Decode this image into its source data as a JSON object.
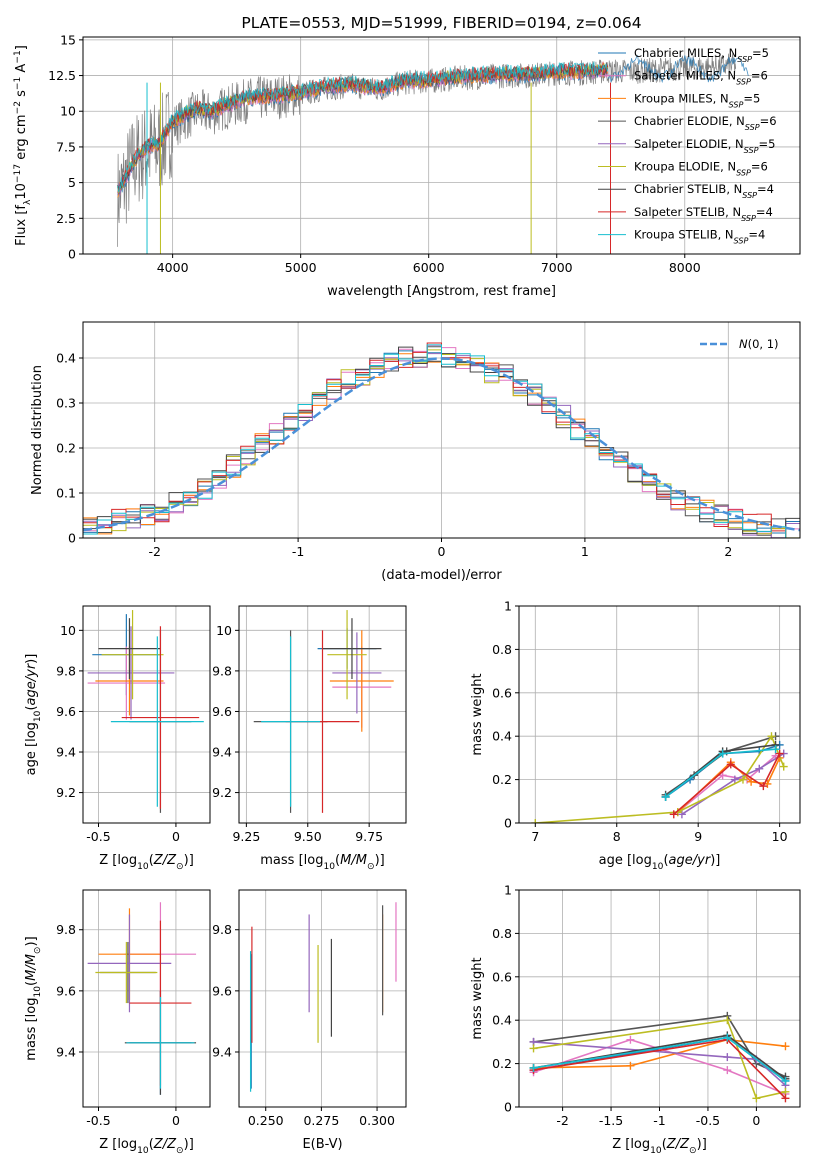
{
  "chart_data": [
    {
      "id": "spectrum",
      "type": "line",
      "title": "PLATE=0553, MJD=51999, FIBERID=0194, z=0.064",
      "xlabel": "wavelength [Angstrom, rest frame]",
      "ylabel": "Flux [f_λ10^-17 erg cm^-2 s^-1 A^-1]",
      "xlim": [
        3300,
        8900
      ],
      "ylim": [
        0,
        15.2
      ],
      "xticks": [
        4000,
        5000,
        6000,
        7000,
        8000
      ],
      "yticks": [
        0.0,
        2.5,
        5.0,
        7.5,
        10.0,
        12.5,
        15.0
      ],
      "data_color": "#808080",
      "data_x": [
        3570,
        3600,
        3700,
        3800,
        3900,
        4000,
        4100,
        4200,
        4300,
        4400,
        4600,
        4800,
        5000,
        5200,
        5400,
        5600,
        5800,
        6000,
        6200,
        6400,
        6600,
        6800,
        7000,
        7200,
        7400,
        7600,
        7800,
        8000,
        8200,
        8400
      ],
      "data_y": [
        4.0,
        4.5,
        6.5,
        7.2,
        7.5,
        9.0,
        9.5,
        10.0,
        9.8,
        10.2,
        10.8,
        11.0,
        11.2,
        11.6,
        11.8,
        11.5,
        12.0,
        12.1,
        12.3,
        12.4,
        12.5,
        12.5,
        12.7,
        12.7,
        12.8,
        12.8,
        12.9,
        13.0,
        13.1,
        13.2
      ],
      "model_x": [
        3570,
        3600,
        3700,
        3800,
        3900,
        4000,
        4100,
        4200,
        4300,
        4400,
        4600,
        4800,
        5000,
        5200,
        5400,
        5600,
        5800,
        6000,
        6200,
        6400,
        6600,
        6800,
        7000,
        7200,
        7400
      ],
      "model_y": [
        4.5,
        4.8,
        6.6,
        7.5,
        7.8,
        9.3,
        9.8,
        10.2,
        10.0,
        10.4,
        11.0,
        11.1,
        11.3,
        11.7,
        11.9,
        11.6,
        12.1,
        12.2,
        12.4,
        12.5,
        12.6,
        12.6,
        12.8,
        12.8,
        12.9
      ],
      "series": [
        {
          "name": "Chabrier MILES, N_SSP=5",
          "color": "#1f77b4"
        },
        {
          "name": "Salpeter MILES, N_SSP=6",
          "color": "#e377c2"
        },
        {
          "name": "Kroupa MILES, N_SSP=5",
          "color": "#ff7f0e"
        },
        {
          "name": "Chabrier ELODIE, N_SSP=6",
          "color": "#555555"
        },
        {
          "name": "Salpeter ELODIE, N_SSP=5",
          "color": "#9467bd"
        },
        {
          "name": "Kroupa ELODIE, N_SSP=6",
          "color": "#bcbd22"
        },
        {
          "name": "Chabrier STELIB, N_SSP=4",
          "color": "#444444"
        },
        {
          "name": "Salpeter STELIB, N_SSP=4",
          "color": "#d62728"
        },
        {
          "name": "Kroupa STELIB, N_SSP=4",
          "color": "#17becf"
        }
      ]
    },
    {
      "id": "residuals",
      "type": "line",
      "xlabel": "(data-model)/error",
      "ylabel": "Normed distribution",
      "xlim": [
        -2.5,
        2.5
      ],
      "ylim": [
        0,
        0.48
      ],
      "xticks": [
        -2,
        -1,
        0,
        1,
        2
      ],
      "yticks": [
        0.0,
        0.1,
        0.2,
        0.3,
        0.4
      ],
      "legend": "N(0,1)",
      "legend_position": "top-right",
      "histogram_bins": [
        -2.5,
        -2.4,
        -2.3,
        -2.2,
        -2.1,
        -2.0,
        -1.9,
        -1.8,
        -1.7,
        -1.6,
        -1.5,
        -1.4,
        -1.3,
        -1.2,
        -1.1,
        -1.0,
        -0.9,
        -0.8,
        -0.7,
        -0.6,
        -0.5,
        -0.4,
        -0.3,
        -0.2,
        -0.1,
        0.0,
        0.1,
        0.2,
        0.3,
        0.4,
        0.5,
        0.6,
        0.7,
        0.8,
        0.9,
        1.0,
        1.1,
        1.2,
        1.3,
        1.4,
        1.5,
        1.6,
        1.7,
        1.8,
        1.9,
        2.0,
        2.1,
        2.2,
        2.3,
        2.4
      ],
      "histogram_values": [
        0.02,
        0.03,
        0.04,
        0.04,
        0.05,
        0.06,
        0.08,
        0.09,
        0.11,
        0.13,
        0.16,
        0.18,
        0.21,
        0.23,
        0.26,
        0.28,
        0.31,
        0.33,
        0.35,
        0.36,
        0.38,
        0.39,
        0.4,
        0.4,
        0.41,
        0.4,
        0.39,
        0.38,
        0.37,
        0.36,
        0.34,
        0.32,
        0.29,
        0.27,
        0.24,
        0.22,
        0.19,
        0.17,
        0.14,
        0.12,
        0.1,
        0.08,
        0.07,
        0.06,
        0.05,
        0.04,
        0.03,
        0.03,
        0.02,
        0.02
      ]
    },
    {
      "id": "age_vs_Z",
      "type": "scatter",
      "xlabel": "Z [log10(Z/Z⊙)]",
      "ylabel": "age [log10(age/yr)]",
      "xlim": [
        -0.6,
        0.22
      ],
      "ylim": [
        9.05,
        10.12
      ],
      "xticks": [
        -0.5,
        0.0
      ],
      "yticks": [
        9.2,
        9.4,
        9.6,
        9.8,
        10.0
      ],
      "points": [
        {
          "x": -0.32,
          "y": 9.88,
          "xerr": 0.22,
          "yerr": 0.2,
          "color": "#1f77b4"
        },
        {
          "x": -0.32,
          "y": 9.74,
          "xerr": 0.25,
          "yerr": 0.18,
          "color": "#e377c2"
        },
        {
          "x": -0.3,
          "y": 9.75,
          "xerr": 0.22,
          "yerr": 0.17,
          "color": "#ff7f0e"
        },
        {
          "x": -0.1,
          "y": 9.55,
          "xerr": 0.2,
          "yerr": 0.45,
          "color": "#555555"
        },
        {
          "x": -0.29,
          "y": 9.79,
          "xerr": 0.28,
          "yerr": 0.23,
          "color": "#9467bd"
        },
        {
          "x": -0.28,
          "y": 9.88,
          "xerr": 0.2,
          "yerr": 0.22,
          "color": "#bcbd22"
        },
        {
          "x": -0.3,
          "y": 9.91,
          "xerr": 0.2,
          "yerr": 0.15,
          "color": "#444444"
        },
        {
          "x": -0.1,
          "y": 9.57,
          "xerr": 0.25,
          "yerr": 0.45,
          "color": "#d62728"
        },
        {
          "x": -0.12,
          "y": 9.55,
          "xerr": 0.3,
          "yerr": 0.42,
          "color": "#17becf"
        }
      ]
    },
    {
      "id": "age_vs_mass",
      "type": "scatter",
      "xlabel": "mass [log10(M/M⊙)]",
      "ylabel": "",
      "xlim": [
        9.22,
        9.9
      ],
      "ylim": [
        9.05,
        10.12
      ],
      "xticks": [
        9.25,
        9.5,
        9.75
      ],
      "xtick_labels": [
        "9.25",
        "9.50",
        "9.75"
      ],
      "yticks": [
        9.2,
        9.4,
        9.6,
        9.8,
        10.0
      ],
      "points": [
        {
          "x": 9.66,
          "y": 9.91,
          "xerr": 0.12,
          "yerr": 0.1,
          "color": "#1f77b4"
        },
        {
          "x": 9.72,
          "y": 9.72,
          "xerr": 0.12,
          "yerr": 0.2,
          "color": "#e377c2"
        },
        {
          "x": 9.72,
          "y": 9.75,
          "xerr": 0.13,
          "yerr": 0.25,
          "color": "#ff7f0e"
        },
        {
          "x": 9.43,
          "y": 9.55,
          "xerr": 0.15,
          "yerr": 0.45,
          "color": "#555555"
        },
        {
          "x": 9.7,
          "y": 9.79,
          "xerr": 0.1,
          "yerr": 0.2,
          "color": "#9467bd"
        },
        {
          "x": 9.66,
          "y": 9.88,
          "xerr": 0.08,
          "yerr": 0.22,
          "color": "#bcbd22"
        },
        {
          "x": 9.68,
          "y": 9.91,
          "xerr": 0.12,
          "yerr": 0.15,
          "color": "#444444"
        },
        {
          "x": 9.56,
          "y": 9.55,
          "xerr": 0.15,
          "yerr": 0.45,
          "color": "#d62728"
        },
        {
          "x": 9.43,
          "y": 9.55,
          "xerr": 0.12,
          "yerr": 0.42,
          "color": "#17becf"
        }
      ]
    },
    {
      "id": "weight_vs_age",
      "type": "line",
      "xlabel": "age [log10(age/yr)]",
      "ylabel": "mass weight",
      "xlim": [
        6.8,
        10.25
      ],
      "ylim": [
        0,
        1
      ],
      "xticks": [
        7,
        8,
        9,
        10
      ],
      "yticks": [
        0.0,
        0.2,
        0.4,
        0.6,
        0.8,
        1.0
      ],
      "series": [
        {
          "name": "Chabrier MILES",
          "color": "#1f77b4",
          "x": [
            8.6,
            8.9,
            9.3,
            9.75,
            10.0
          ],
          "y": [
            0.12,
            0.2,
            0.32,
            0.33,
            0.36
          ]
        },
        {
          "name": "Salpeter MILES",
          "color": "#e377c2",
          "x": [
            8.75,
            9.3,
            9.6,
            9.95
          ],
          "y": [
            0.05,
            0.22,
            0.2,
            0.31
          ]
        },
        {
          "name": "Kroupa MILES",
          "color": "#ff7f0e",
          "x": [
            8.75,
            9.4,
            9.65,
            9.85,
            10.0
          ],
          "y": [
            0.05,
            0.28,
            0.19,
            0.18,
            0.3
          ]
        },
        {
          "name": "Chabrier ELODIE",
          "color": "#555555",
          "x": [
            8.6,
            8.95,
            9.35,
            9.95
          ],
          "y": [
            0.13,
            0.22,
            0.33,
            0.4
          ]
        },
        {
          "name": "Salpeter ELODIE",
          "color": "#9467bd",
          "x": [
            8.8,
            9.45,
            9.75,
            10.05
          ],
          "y": [
            0.04,
            0.2,
            0.25,
            0.32
          ]
        },
        {
          "name": "Kroupa ELODIE",
          "color": "#bcbd22",
          "x": [
            7.0,
            8.75,
            9.55,
            9.9,
            10.05
          ],
          "y": [
            0.0,
            0.05,
            0.2,
            0.4,
            0.26
          ]
        },
        {
          "name": "Chabrier STELIB",
          "color": "#444444",
          "x": [
            8.6,
            9.3,
            9.95
          ],
          "y": [
            0.12,
            0.33,
            0.36
          ]
        },
        {
          "name": "Salpeter STELIB",
          "color": "#d62728",
          "x": [
            8.7,
            9.4,
            9.8,
            10.0
          ],
          "y": [
            0.04,
            0.27,
            0.17,
            0.32
          ]
        },
        {
          "name": "Kroupa STELIB",
          "color": "#17becf",
          "x": [
            8.6,
            9.3,
            9.95
          ],
          "y": [
            0.12,
            0.32,
            0.34
          ]
        }
      ]
    },
    {
      "id": "mass_vs_Z",
      "type": "scatter",
      "xlabel": "Z [log10(Z/Z⊙)]",
      "ylabel": "mass [log10(M/M⊙)]",
      "xlim": [
        -0.6,
        0.22
      ],
      "ylim": [
        9.22,
        9.93
      ],
      "xticks": [
        -0.5,
        0.0
      ],
      "yticks": [
        9.4,
        9.6,
        9.8
      ],
      "points": [
        {
          "x": -0.1,
          "y": 9.43,
          "xerr": 0.2,
          "yerr": 0.17,
          "color": "#1f77b4"
        },
        {
          "x": -0.1,
          "y": 9.72,
          "xerr": 0.23,
          "yerr": 0.17,
          "color": "#e377c2"
        },
        {
          "x": -0.3,
          "y": 9.72,
          "xerr": 0.2,
          "yerr": 0.15,
          "color": "#ff7f0e"
        },
        {
          "x": -0.31,
          "y": 9.66,
          "xerr": 0.18,
          "yerr": 0.1,
          "color": "#555555"
        },
        {
          "x": -0.3,
          "y": 9.69,
          "xerr": 0.27,
          "yerr": 0.16,
          "color": "#9467bd"
        },
        {
          "x": -0.32,
          "y": 9.66,
          "xerr": 0.2,
          "yerr": 0.1,
          "color": "#bcbd22"
        },
        {
          "x": -0.1,
          "y": 9.43,
          "xerr": 0.23,
          "yerr": 0.17,
          "color": "#444444"
        },
        {
          "x": -0.1,
          "y": 9.56,
          "xerr": 0.2,
          "yerr": 0.27,
          "color": "#d62728"
        },
        {
          "x": -0.1,
          "y": 9.43,
          "xerr": 0.22,
          "yerr": 0.15,
          "color": "#17becf"
        }
      ]
    },
    {
      "id": "mass_vs_ebv",
      "type": "scatter",
      "xlabel": "E(B-V)",
      "ylabel": "",
      "xlim": [
        0.238,
        0.313
      ],
      "ylim": [
        9.22,
        9.93
      ],
      "xticks": [
        0.25,
        0.275,
        0.3
      ],
      "xtick_labels": [
        "0.250",
        "0.275",
        "0.300"
      ],
      "yticks": [
        9.4,
        9.6,
        9.8
      ],
      "points": [
        {
          "x": 0.2435,
          "y": 9.5,
          "yerr": 0.22,
          "color": "#1f77b4"
        },
        {
          "x": 0.3085,
          "y": 9.76,
          "yerr": 0.13,
          "color": "#e377c2"
        },
        {
          "x": 0.3025,
          "y": 9.69,
          "yerr": 0.16,
          "color": "#ff7f0e"
        },
        {
          "x": 0.3025,
          "y": 9.7,
          "yerr": 0.18,
          "color": "#555555"
        },
        {
          "x": 0.2695,
          "y": 9.69,
          "yerr": 0.16,
          "color": "#9467bd"
        },
        {
          "x": 0.2735,
          "y": 9.59,
          "yerr": 0.16,
          "color": "#bcbd22"
        },
        {
          "x": 0.2795,
          "y": 9.61,
          "yerr": 0.16,
          "color": "#444444"
        },
        {
          "x": 0.2438,
          "y": 9.62,
          "yerr": 0.19,
          "color": "#d62728"
        },
        {
          "x": 0.2432,
          "y": 9.5,
          "yerr": 0.23,
          "color": "#17becf"
        }
      ]
    },
    {
      "id": "weight_vs_Z",
      "type": "line",
      "xlabel": "Z [log10(Z/Z⊙)]",
      "ylabel": "mass weight",
      "xlim": [
        -2.45,
        0.45
      ],
      "ylim": [
        0,
        1
      ],
      "xticks": [
        -2.0,
        -1.5,
        -1.0,
        -0.5,
        0.0
      ],
      "yticks": [
        0.0,
        0.2,
        0.4,
        0.6,
        0.8,
        1.0
      ],
      "series": [
        {
          "name": "Chabrier MILES",
          "color": "#1f77b4",
          "x": [
            -2.3,
            -0.3,
            0.3
          ],
          "y": [
            0.17,
            0.32,
            0.12
          ]
        },
        {
          "name": "Salpeter MILES",
          "color": "#e377c2",
          "x": [
            -2.3,
            -1.3,
            -0.3,
            0.3
          ],
          "y": [
            0.16,
            0.31,
            0.17,
            0.06
          ]
        },
        {
          "name": "Kroupa MILES",
          "color": "#ff7f0e",
          "x": [
            -2.3,
            -1.3,
            -0.3,
            0.3
          ],
          "y": [
            0.18,
            0.19,
            0.31,
            0.28
          ]
        },
        {
          "name": "Chabrier ELODIE",
          "color": "#555555",
          "x": [
            -2.3,
            -0.3,
            0.0,
            0.3
          ],
          "y": [
            0.3,
            0.42,
            0.2,
            0.14
          ]
        },
        {
          "name": "Salpeter ELODIE",
          "color": "#9467bd",
          "x": [
            -2.3,
            -0.3,
            0.0,
            0.3
          ],
          "y": [
            0.3,
            0.23,
            0.22,
            0.1
          ]
        },
        {
          "name": "Kroupa ELODIE",
          "color": "#bcbd22",
          "x": [
            -2.3,
            -0.3,
            0.0,
            0.3
          ],
          "y": [
            0.27,
            0.4,
            0.04,
            0.07
          ]
        },
        {
          "name": "Chabrier STELIB",
          "color": "#444444",
          "x": [
            -2.3,
            -0.3,
            0.3
          ],
          "y": [
            0.18,
            0.33,
            0.13
          ]
        },
        {
          "name": "Salpeter STELIB",
          "color": "#d62728",
          "x": [
            -2.3,
            -0.3,
            0.3
          ],
          "y": [
            0.17,
            0.31,
            0.04
          ]
        },
        {
          "name": "Kroupa STELIB",
          "color": "#17becf",
          "x": [
            -2.3,
            -0.3,
            0.3
          ],
          "y": [
            0.18,
            0.32,
            0.12
          ]
        }
      ]
    }
  ]
}
